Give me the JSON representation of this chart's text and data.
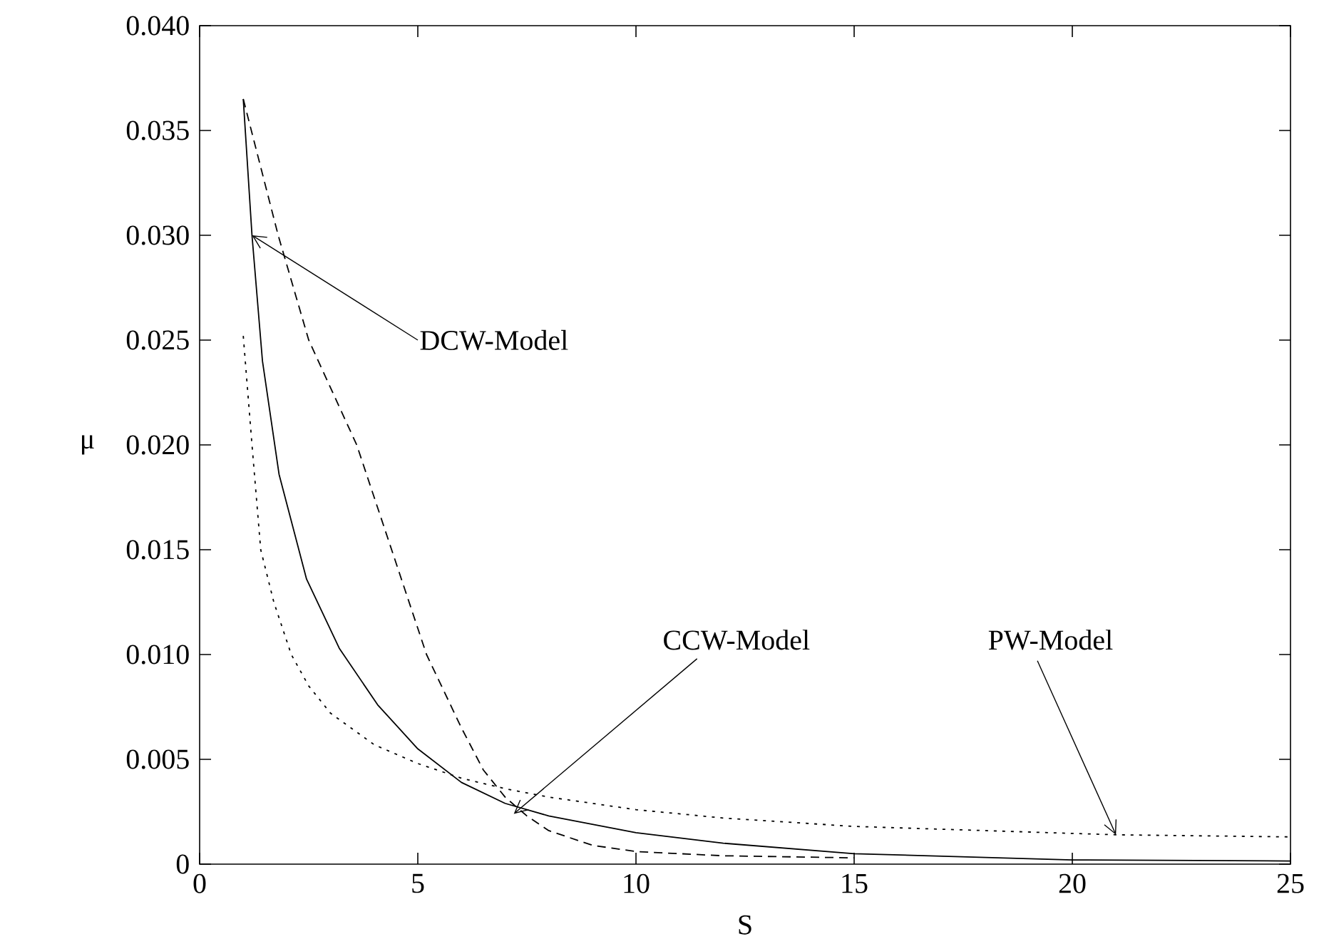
{
  "chart_data": {
    "type": "line",
    "xlabel": "S",
    "ylabel": "μ",
    "xlim": [
      0,
      25
    ],
    "ylim": [
      0,
      0.04
    ],
    "xticks": [
      0,
      5,
      10,
      15,
      20,
      25
    ],
    "yticks": [
      0,
      0.005,
      {
        "value": 0.01,
        "label": "0.010"
      },
      0.015,
      {
        "value": 0.02,
        "label": "0.020"
      },
      0.025,
      {
        "value": 0.03,
        "label": "0.030"
      },
      0.035,
      {
        "value": 0.04,
        "label": "0.040"
      }
    ],
    "grid": false,
    "series": [
      {
        "color": "#000000",
        "line_style": "solid",
        "x": [
          1,
          1.2,
          1.44,
          1.82,
          2.45,
          3.2,
          4.08,
          5,
          6,
          7,
          8,
          10,
          12,
          15,
          20,
          25
        ],
        "values": [
          0.0365,
          0.03,
          0.024,
          0.0186,
          0.0136,
          0.0103,
          0.0076,
          0.0055,
          0.0039,
          0.0029,
          0.0023,
          0.0015,
          0.001,
          0.0005,
          0.0002,
          0.00015
        ]
      },
      {
        "color": "#000000",
        "line_style": "dashed",
        "x": [
          1,
          1.8,
          2.5,
          3.6,
          4.4,
          5.2,
          6,
          6.5,
          7,
          7.5,
          8,
          9,
          10,
          12,
          15
        ],
        "values": [
          0.0365,
          0.03,
          0.025,
          0.02,
          0.015,
          0.01,
          0.0065,
          0.0045,
          0.0032,
          0.0023,
          0.0016,
          0.0009,
          0.0006,
          0.0004,
          0.0003
        ]
      },
      {
        "color": "#000000",
        "line_style": "dotted",
        "x": [
          1,
          1.2,
          1.4,
          1.7,
          2.1,
          2.5,
          3,
          4,
          5,
          6,
          7,
          8,
          10,
          12,
          15,
          18,
          21,
          25
        ],
        "values": [
          0.0252,
          0.02,
          0.015,
          0.0125,
          0.01,
          0.0085,
          0.0072,
          0.0057,
          0.0048,
          0.0041,
          0.0036,
          0.0032,
          0.0026,
          0.0022,
          0.0018,
          0.0016,
          0.0014,
          0.0013
        ]
      }
    ],
    "annotations": [
      {
        "text": "DCW-Model",
        "x": 1.2,
        "y": 0.03
      },
      {
        "text": "CCW-Model",
        "x": 7.2,
        "y": 0.0024
      },
      {
        "text": "PW-Model",
        "x": 21,
        "y": 0.0014
      }
    ]
  }
}
